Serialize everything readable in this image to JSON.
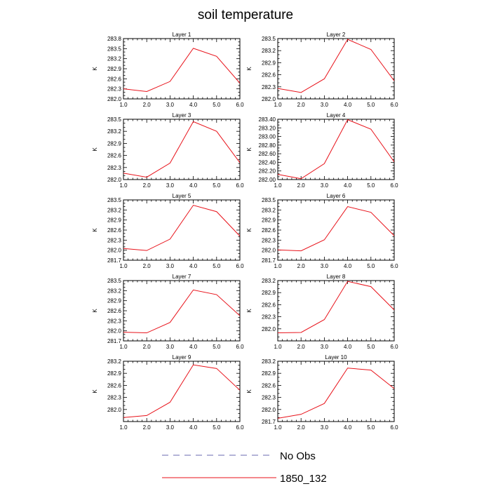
{
  "title": "soil temperature",
  "legend": [
    {
      "label": "No Obs",
      "color": "#6a6ab0",
      "dash": true
    },
    {
      "label": "1850_132",
      "color": "#e8121a",
      "dash": false
    }
  ],
  "chart_data": [
    {
      "type": "line",
      "title": "Layer 1",
      "ylabel": "K",
      "x": [
        1,
        2,
        3,
        4,
        5,
        6
      ],
      "xlim": [
        1,
        6
      ],
      "xticks": [
        "1.0",
        "2.0",
        "3.0",
        "4.0",
        "5.0",
        "6.0"
      ],
      "ylim": [
        282.0,
        283.8
      ],
      "yticks": [
        "282.0",
        "282.3",
        "282.6",
        "282.9",
        "283.2",
        "283.5",
        "283.8"
      ],
      "series": [
        {
          "values": [
            282.3,
            282.22,
            282.52,
            283.51,
            283.27,
            282.47
          ],
          "color": "#e8121a"
        }
      ]
    },
    {
      "type": "line",
      "title": "Layer 2",
      "ylabel": "K",
      "x": [
        1,
        2,
        3,
        4,
        5,
        6
      ],
      "xlim": [
        1,
        6
      ],
      "xticks": [
        "1.0",
        "2.0",
        "3.0",
        "4.0",
        "5.0",
        "6.0"
      ],
      "ylim": [
        282.0,
        283.5
      ],
      "yticks": [
        "282.0",
        "282.3",
        "282.6",
        "282.9",
        "283.2",
        "283.5"
      ],
      "series": [
        {
          "values": [
            282.26,
            282.16,
            282.5,
            283.48,
            283.23,
            282.45
          ],
          "color": "#e8121a"
        }
      ]
    },
    {
      "type": "line",
      "title": "Layer 3",
      "ylabel": "K",
      "x": [
        1,
        2,
        3,
        4,
        5,
        6
      ],
      "xlim": [
        1,
        6
      ],
      "xticks": [
        "1.0",
        "2.0",
        "3.0",
        "4.0",
        "5.0",
        "6.0"
      ],
      "ylim": [
        282.0,
        283.5
      ],
      "yticks": [
        "282.0",
        "282.3",
        "282.6",
        "282.9",
        "283.2",
        "283.5"
      ],
      "series": [
        {
          "values": [
            282.16,
            282.06,
            282.41,
            283.44,
            283.2,
            282.42
          ],
          "color": "#e8121a"
        }
      ]
    },
    {
      "type": "line",
      "title": "Layer 4",
      "ylabel": "K",
      "x": [
        1,
        2,
        3,
        4,
        5,
        6
      ],
      "xlim": [
        1,
        6
      ],
      "xticks": [
        "1.0",
        "2.0",
        "3.0",
        "4.0",
        "5.0",
        "6.0"
      ],
      "ylim": [
        282.0,
        283.4
      ],
      "yticks": [
        "282.00",
        "282.20",
        "282.40",
        "282.60",
        "282.80",
        "283.00",
        "283.20",
        "283.40"
      ],
      "series": [
        {
          "values": [
            282.12,
            282.02,
            282.37,
            283.39,
            283.17,
            282.41
          ],
          "color": "#e8121a"
        }
      ]
    },
    {
      "type": "line",
      "title": "Layer 5",
      "ylabel": "K",
      "x": [
        1,
        2,
        3,
        4,
        5,
        6
      ],
      "xlim": [
        1,
        6
      ],
      "xticks": [
        "1.0",
        "2.0",
        "3.0",
        "4.0",
        "5.0",
        "6.0"
      ],
      "ylim": [
        281.7,
        283.5
      ],
      "yticks": [
        "281.7",
        "282.0",
        "282.3",
        "282.6",
        "282.9",
        "283.2",
        "283.5"
      ],
      "series": [
        {
          "values": [
            282.05,
            281.99,
            282.33,
            283.34,
            283.15,
            282.42
          ],
          "color": "#e8121a"
        }
      ]
    },
    {
      "type": "line",
      "title": "Layer 6",
      "ylabel": "K",
      "x": [
        1,
        2,
        3,
        4,
        5,
        6
      ],
      "xlim": [
        1,
        6
      ],
      "xticks": [
        "1.0",
        "2.0",
        "3.0",
        "4.0",
        "5.0",
        "6.0"
      ],
      "ylim": [
        281.7,
        283.5
      ],
      "yticks": [
        "281.7",
        "282.0",
        "282.3",
        "282.6",
        "282.9",
        "283.2",
        "283.5"
      ],
      "series": [
        {
          "values": [
            282.01,
            281.98,
            282.31,
            283.3,
            283.13,
            282.43
          ],
          "color": "#e8121a"
        }
      ]
    },
    {
      "type": "line",
      "title": "Layer 7",
      "ylabel": "K",
      "x": [
        1,
        2,
        3,
        4,
        5,
        6
      ],
      "xlim": [
        1,
        6
      ],
      "xticks": [
        "1.0",
        "2.0",
        "3.0",
        "4.0",
        "5.0",
        "6.0"
      ],
      "ylim": [
        281.7,
        283.5
      ],
      "yticks": [
        "281.7",
        "282.0",
        "282.3",
        "282.6",
        "282.9",
        "283.2",
        "283.5"
      ],
      "series": [
        {
          "values": [
            281.96,
            281.94,
            282.25,
            283.22,
            283.08,
            282.45
          ],
          "color": "#e8121a"
        }
      ]
    },
    {
      "type": "line",
      "title": "Layer 8",
      "ylabel": "K",
      "x": [
        1,
        2,
        3,
        4,
        5,
        6
      ],
      "xlim": [
        1,
        6
      ],
      "xticks": [
        "1.0",
        "2.0",
        "3.0",
        "4.0",
        "5.0",
        "6.0"
      ],
      "ylim": [
        281.7,
        283.2
      ],
      "yticks": [
        "282.0",
        "282.3",
        "282.6",
        "282.9",
        "283.2"
      ],
      "series": [
        {
          "values": [
            281.9,
            281.91,
            282.23,
            283.18,
            283.05,
            282.47
          ],
          "color": "#e8121a"
        }
      ]
    },
    {
      "type": "line",
      "title": "Layer 9",
      "ylabel": "K",
      "x": [
        1,
        2,
        3,
        4,
        5,
        6
      ],
      "xlim": [
        1,
        6
      ],
      "xticks": [
        "1.0",
        "2.0",
        "3.0",
        "4.0",
        "5.0",
        "6.0"
      ],
      "ylim": [
        281.7,
        283.2
      ],
      "yticks": [
        "282.0",
        "282.3",
        "282.6",
        "282.9",
        "283.2"
      ],
      "series": [
        {
          "values": [
            281.8,
            281.85,
            282.18,
            283.11,
            283.02,
            282.48
          ],
          "color": "#e8121a"
        }
      ]
    },
    {
      "type": "line",
      "title": "Layer 10",
      "ylabel": "K",
      "x": [
        1,
        2,
        3,
        4,
        5,
        6
      ],
      "xlim": [
        1,
        6
      ],
      "xticks": [
        "1.0",
        "2.0",
        "3.0",
        "4.0",
        "5.0",
        "6.0"
      ],
      "ylim": [
        281.7,
        283.2
      ],
      "yticks": [
        "281.7",
        "282.0",
        "282.3",
        "282.6",
        "282.9",
        "283.2"
      ],
      "series": [
        {
          "values": [
            281.78,
            281.88,
            282.15,
            283.03,
            282.98,
            282.52
          ],
          "color": "#e8121a"
        }
      ]
    }
  ]
}
